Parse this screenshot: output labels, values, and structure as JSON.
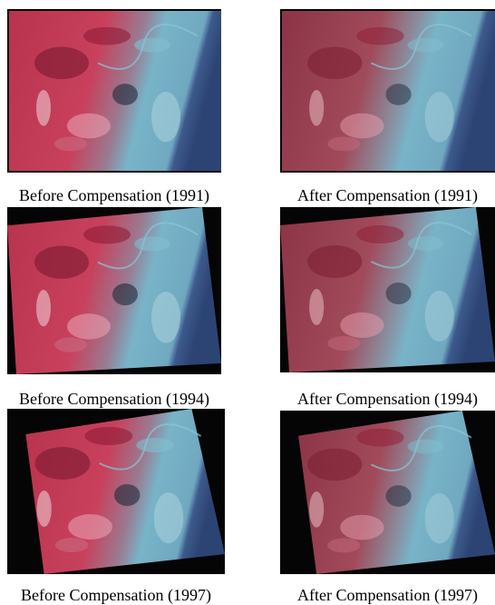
{
  "figure": {
    "panels": [
      {
        "caption": "Before Compensation (1991)"
      },
      {
        "caption": "After Compensation (1991)"
      },
      {
        "caption": "Before Compensation (1994)"
      },
      {
        "caption": "After Compensation (1994)"
      },
      {
        "caption": "Before Compensation (1997)"
      },
      {
        "caption": "After Compensation (1997)"
      }
    ]
  }
}
